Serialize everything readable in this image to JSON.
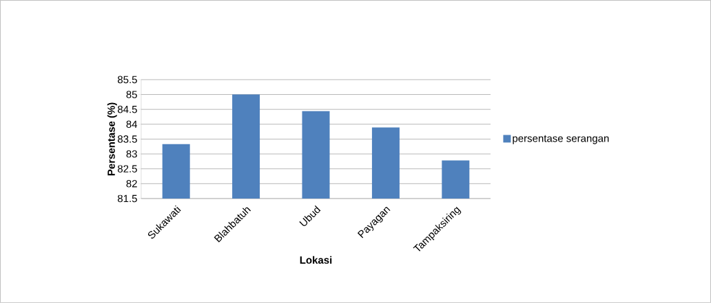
{
  "chart_data": {
    "type": "bar",
    "xlabel": "Lokasi",
    "ylabel": "Persentase  (%)",
    "categories": [
      "Sukawati",
      "Blahbatuh",
      "Ubud",
      "Payagan",
      "Tampaksiring"
    ],
    "series": [
      {
        "name": "persentase serangan",
        "color": "#4f81bd",
        "values": [
          83.33,
          85.0,
          84.44,
          83.89,
          82.78
        ]
      }
    ],
    "ylim": [
      81.5,
      85.5
    ],
    "yticks": [
      81.5,
      82,
      82.5,
      83,
      83.5,
      84,
      84.5,
      85,
      85.5
    ],
    "grid": "y",
    "legend": "right"
  }
}
